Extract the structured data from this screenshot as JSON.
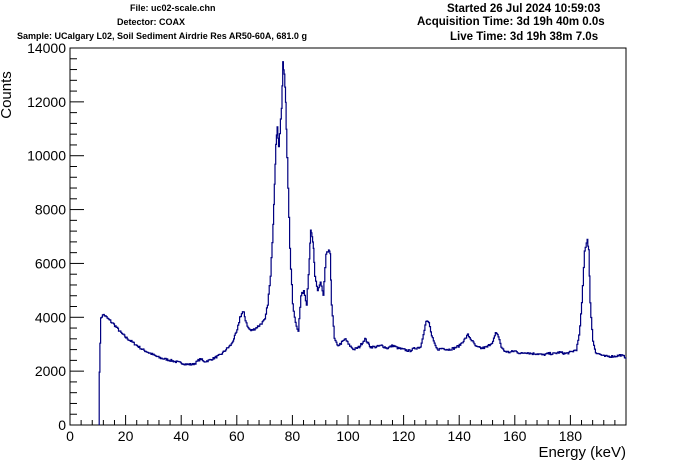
{
  "header": {
    "file": "File: uc02-scale.chn",
    "detector": "Detector: COAX",
    "sample": "Sample: UCalgary L02, Soil Sediment Airdrie Res AR50-60A, 681.0 g",
    "started": "Started 26 Jul 2024 10:59:03",
    "acquisition": "Acquisition Time: 3d 19h 40m 0.0s",
    "live": "Live Time: 3d 19h 38m 7.0s"
  },
  "chart_data": {
    "type": "line",
    "title": "",
    "xlabel": "Energy (keV)",
    "ylabel": "Counts",
    "xlim": [
      0,
      200
    ],
    "ylim": [
      0,
      14000
    ],
    "x_ticks": [
      0,
      20,
      40,
      60,
      80,
      100,
      120,
      140,
      160,
      180
    ],
    "y_ticks": [
      0,
      2000,
      4000,
      6000,
      8000,
      10000,
      12000,
      14000
    ],
    "grid": false,
    "line_color": "#000080",
    "series": [
      {
        "x": [
          10.5,
          11,
          12,
          13,
          14,
          15,
          16,
          18,
          20,
          22,
          24,
          26,
          28,
          30,
          32,
          34,
          36,
          38,
          40,
          42,
          44,
          45,
          46,
          47,
          48,
          50,
          52,
          54,
          56,
          58,
          60,
          61,
          62,
          62.5,
          63,
          64,
          65,
          66,
          68,
          70,
          71,
          72,
          73,
          73.5,
          74,
          74.5,
          75,
          76,
          76.5,
          77,
          77.5,
          78,
          79,
          80,
          81,
          82,
          83,
          84,
          85,
          86,
          86.5,
          87,
          87.5,
          88,
          89,
          90,
          91,
          92,
          93,
          93.5,
          94,
          95,
          96,
          97,
          98,
          99,
          100,
          102,
          104,
          106,
          108,
          110,
          112,
          114,
          116,
          118,
          120,
          122,
          124,
          126,
          127,
          128,
          129,
          130,
          131,
          132,
          134,
          136,
          138,
          140,
          142,
          143,
          144,
          145,
          146,
          148,
          150,
          152,
          153,
          154,
          155,
          156,
          158,
          160,
          162,
          164,
          166,
          168,
          170,
          172,
          174,
          176,
          178,
          180,
          182,
          183,
          184,
          185,
          186,
          186.5,
          187,
          188,
          189,
          190,
          192,
          194,
          196,
          198,
          200
        ],
        "values": [
          2000,
          4000,
          4100,
          4000,
          3900,
          3800,
          3700,
          3450,
          3250,
          3100,
          2950,
          2800,
          2700,
          2600,
          2500,
          2450,
          2400,
          2350,
          2300,
          2250,
          2250,
          2300,
          2400,
          2450,
          2350,
          2400,
          2500,
          2600,
          2800,
          3000,
          3500,
          4000,
          4200,
          4150,
          3900,
          3600,
          3500,
          3550,
          3700,
          3900,
          4500,
          5500,
          7500,
          9000,
          10500,
          11000,
          10400,
          11800,
          13400,
          13000,
          12000,
          10000,
          6500,
          4500,
          3800,
          3500,
          4800,
          5000,
          4500,
          6200,
          7200,
          7000,
          6500,
          5500,
          5000,
          5300,
          4800,
          6300,
          6500,
          6300,
          4500,
          3200,
          2950,
          3000,
          3100,
          3200,
          3000,
          2800,
          2900,
          3200,
          2900,
          2900,
          2950,
          2850,
          2950,
          2850,
          2800,
          2750,
          2850,
          2900,
          3400,
          3850,
          3800,
          3300,
          3000,
          2800,
          2850,
          2800,
          2850,
          2950,
          3200,
          3350,
          3200,
          3050,
          2900,
          2850,
          2900,
          3100,
          3400,
          3300,
          2900,
          2750,
          2700,
          2750,
          2650,
          2700,
          2650,
          2650,
          2600,
          2650,
          2650,
          2700,
          2650,
          2700,
          2800,
          3300,
          4500,
          6500,
          6900,
          6500,
          4500,
          3100,
          2700,
          2650,
          2550,
          2550,
          2550,
          2600,
          2500
        ]
      }
    ]
  }
}
